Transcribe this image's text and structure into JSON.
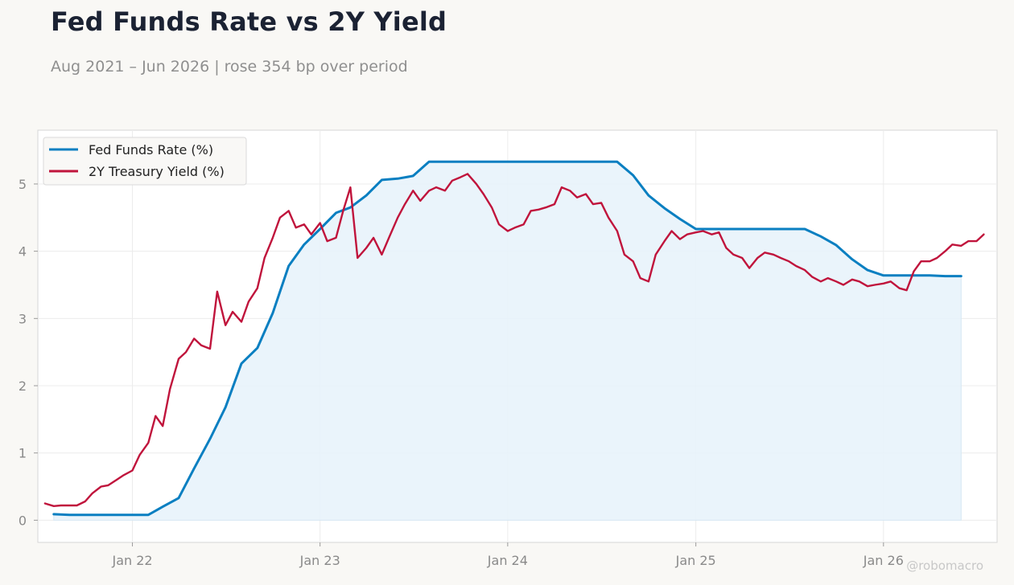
{
  "title": "Fed Funds Rate vs 2Y Yield",
  "subtitle": "Aug 2021 – Jun 2026 | rose 354 bp over period",
  "watermark": "@robomacro",
  "colors": {
    "background": "#f9f8f5",
    "plot_background": "#ffffff",
    "fed_funds": "#0a7fc1",
    "fed_funds_fill": "#e8f3fb",
    "treasury_2y": "#c0143c",
    "grid": "#ececec",
    "frame": "#d6d6d6"
  },
  "chart_data": {
    "type": "line",
    "title": "Fed Funds Rate vs 2Y Yield",
    "xlabel": "",
    "ylabel": "",
    "x_ticks": [
      "Jan 22",
      "Jan 23",
      "Jan 24",
      "Jan 25",
      "Jan 26"
    ],
    "y_ticks": [
      0,
      1,
      2,
      3,
      4,
      5
    ],
    "ylim": [
      -0.33,
      5.8
    ],
    "xlim": [
      "2021-07-01",
      "2026-08-10"
    ],
    "grid": true,
    "legend_position": "top-left",
    "series": [
      {
        "name": "Fed Funds Rate (%)",
        "color": "#0a7fc1",
        "fill_to_zero": true,
        "points": [
          [
            "2021-08-01",
            0.09
          ],
          [
            "2021-09-01",
            0.08
          ],
          [
            "2021-10-01",
            0.08
          ],
          [
            "2021-11-01",
            0.08
          ],
          [
            "2021-12-01",
            0.08
          ],
          [
            "2022-01-01",
            0.08
          ],
          [
            "2022-02-01",
            0.08
          ],
          [
            "2022-03-01",
            0.2
          ],
          [
            "2022-04-01",
            0.33
          ],
          [
            "2022-05-01",
            0.77
          ],
          [
            "2022-06-01",
            1.21
          ],
          [
            "2022-07-01",
            1.68
          ],
          [
            "2022-08-01",
            2.33
          ],
          [
            "2022-09-01",
            2.56
          ],
          [
            "2022-10-01",
            3.08
          ],
          [
            "2022-11-01",
            3.78
          ],
          [
            "2022-12-01",
            4.1
          ],
          [
            "2023-01-01",
            4.33
          ],
          [
            "2023-02-01",
            4.57
          ],
          [
            "2023-03-01",
            4.65
          ],
          [
            "2023-04-01",
            4.83
          ],
          [
            "2023-05-01",
            5.06
          ],
          [
            "2023-06-01",
            5.08
          ],
          [
            "2023-07-01",
            5.12
          ],
          [
            "2023-08-01",
            5.33
          ],
          [
            "2023-09-01",
            5.33
          ],
          [
            "2023-10-01",
            5.33
          ],
          [
            "2023-11-01",
            5.33
          ],
          [
            "2023-12-01",
            5.33
          ],
          [
            "2024-01-01",
            5.33
          ],
          [
            "2024-02-01",
            5.33
          ],
          [
            "2024-03-01",
            5.33
          ],
          [
            "2024-04-01",
            5.33
          ],
          [
            "2024-05-01",
            5.33
          ],
          [
            "2024-06-01",
            5.33
          ],
          [
            "2024-07-01",
            5.33
          ],
          [
            "2024-08-01",
            5.33
          ],
          [
            "2024-09-01",
            5.13
          ],
          [
            "2024-10-01",
            4.83
          ],
          [
            "2024-11-01",
            4.64
          ],
          [
            "2024-12-01",
            4.48
          ],
          [
            "2025-01-01",
            4.33
          ],
          [
            "2025-02-01",
            4.33
          ],
          [
            "2025-03-01",
            4.33
          ],
          [
            "2025-04-01",
            4.33
          ],
          [
            "2025-05-01",
            4.33
          ],
          [
            "2025-06-01",
            4.33
          ],
          [
            "2025-07-01",
            4.33
          ],
          [
            "2025-08-01",
            4.33
          ],
          [
            "2025-09-01",
            4.22
          ],
          [
            "2025-10-01",
            4.09
          ],
          [
            "2025-11-01",
            3.88
          ],
          [
            "2025-12-01",
            3.72
          ],
          [
            "2026-01-01",
            3.64
          ],
          [
            "2026-02-01",
            3.64
          ],
          [
            "2026-03-01",
            3.64
          ],
          [
            "2026-04-01",
            3.64
          ],
          [
            "2026-05-01",
            3.63
          ],
          [
            "2026-06-01",
            3.63
          ]
        ]
      },
      {
        "name": "2Y Treasury Yield (%)",
        "color": "#c0143c",
        "points": [
          [
            "2021-07-15",
            0.25
          ],
          [
            "2021-08-01",
            0.21
          ],
          [
            "2021-08-15",
            0.22
          ],
          [
            "2021-09-01",
            0.22
          ],
          [
            "2021-09-15",
            0.22
          ],
          [
            "2021-10-01",
            0.28
          ],
          [
            "2021-10-15",
            0.4
          ],
          [
            "2021-11-01",
            0.5
          ],
          [
            "2021-11-15",
            0.52
          ],
          [
            "2021-12-01",
            0.6
          ],
          [
            "2021-12-15",
            0.67
          ],
          [
            "2022-01-01",
            0.74
          ],
          [
            "2022-01-15",
            0.97
          ],
          [
            "2022-02-01",
            1.15
          ],
          [
            "2022-02-15",
            1.55
          ],
          [
            "2022-03-01",
            1.4
          ],
          [
            "2022-03-15",
            1.95
          ],
          [
            "2022-04-01",
            2.4
          ],
          [
            "2022-04-15",
            2.5
          ],
          [
            "2022-05-01",
            2.7
          ],
          [
            "2022-05-15",
            2.6
          ],
          [
            "2022-06-01",
            2.55
          ],
          [
            "2022-06-15",
            3.4
          ],
          [
            "2022-07-01",
            2.9
          ],
          [
            "2022-07-15",
            3.1
          ],
          [
            "2022-08-01",
            2.95
          ],
          [
            "2022-08-15",
            3.25
          ],
          [
            "2022-09-01",
            3.45
          ],
          [
            "2022-09-15",
            3.9
          ],
          [
            "2022-10-01",
            4.2
          ],
          [
            "2022-10-15",
            4.5
          ],
          [
            "2022-11-01",
            4.6
          ],
          [
            "2022-11-15",
            4.35
          ],
          [
            "2022-12-01",
            4.4
          ],
          [
            "2022-12-15",
            4.25
          ],
          [
            "2023-01-01",
            4.42
          ],
          [
            "2023-01-15",
            4.15
          ],
          [
            "2023-02-01",
            4.2
          ],
          [
            "2023-02-15",
            4.6
          ],
          [
            "2023-03-01",
            4.95
          ],
          [
            "2023-03-15",
            3.9
          ],
          [
            "2023-04-01",
            4.05
          ],
          [
            "2023-04-15",
            4.2
          ],
          [
            "2023-05-01",
            3.95
          ],
          [
            "2023-05-15",
            4.2
          ],
          [
            "2023-06-01",
            4.5
          ],
          [
            "2023-06-15",
            4.7
          ],
          [
            "2023-07-01",
            4.9
          ],
          [
            "2023-07-15",
            4.75
          ],
          [
            "2023-08-01",
            4.9
          ],
          [
            "2023-08-15",
            4.95
          ],
          [
            "2023-09-01",
            4.9
          ],
          [
            "2023-09-15",
            5.05
          ],
          [
            "2023-10-01",
            5.1
          ],
          [
            "2023-10-15",
            5.15
          ],
          [
            "2023-11-01",
            5.0
          ],
          [
            "2023-11-15",
            4.85
          ],
          [
            "2023-12-01",
            4.65
          ],
          [
            "2023-12-15",
            4.4
          ],
          [
            "2024-01-01",
            4.3
          ],
          [
            "2024-01-15",
            4.35
          ],
          [
            "2024-02-01",
            4.4
          ],
          [
            "2024-02-15",
            4.6
          ],
          [
            "2024-03-01",
            4.62
          ],
          [
            "2024-03-15",
            4.65
          ],
          [
            "2024-04-01",
            4.7
          ],
          [
            "2024-04-15",
            4.95
          ],
          [
            "2024-05-01",
            4.9
          ],
          [
            "2024-05-15",
            4.8
          ],
          [
            "2024-06-01",
            4.85
          ],
          [
            "2024-06-15",
            4.7
          ],
          [
            "2024-07-01",
            4.72
          ],
          [
            "2024-07-15",
            4.5
          ],
          [
            "2024-08-01",
            4.3
          ],
          [
            "2024-08-15",
            3.95
          ],
          [
            "2024-09-01",
            3.85
          ],
          [
            "2024-09-15",
            3.6
          ],
          [
            "2024-10-01",
            3.55
          ],
          [
            "2024-10-15",
            3.95
          ],
          [
            "2024-11-01",
            4.15
          ],
          [
            "2024-11-15",
            4.3
          ],
          [
            "2024-12-01",
            4.18
          ],
          [
            "2024-12-15",
            4.25
          ],
          [
            "2025-01-01",
            4.28
          ],
          [
            "2025-01-15",
            4.3
          ],
          [
            "2025-02-01",
            4.25
          ],
          [
            "2025-02-15",
            4.28
          ],
          [
            "2025-03-01",
            4.05
          ],
          [
            "2025-03-15",
            3.95
          ],
          [
            "2025-04-01",
            3.9
          ],
          [
            "2025-04-15",
            3.75
          ],
          [
            "2025-05-01",
            3.9
          ],
          [
            "2025-05-15",
            3.98
          ],
          [
            "2025-06-01",
            3.95
          ],
          [
            "2025-06-15",
            3.9
          ],
          [
            "2025-07-01",
            3.85
          ],
          [
            "2025-07-15",
            3.78
          ],
          [
            "2025-08-01",
            3.72
          ],
          [
            "2025-08-15",
            3.62
          ],
          [
            "2025-09-01",
            3.55
          ],
          [
            "2025-09-15",
            3.6
          ],
          [
            "2025-10-01",
            3.55
          ],
          [
            "2025-10-15",
            3.5
          ],
          [
            "2025-11-01",
            3.58
          ],
          [
            "2025-11-15",
            3.55
          ],
          [
            "2025-12-01",
            3.48
          ],
          [
            "2025-12-15",
            3.5
          ],
          [
            "2026-01-01",
            3.52
          ],
          [
            "2026-01-15",
            3.55
          ],
          [
            "2026-02-01",
            3.45
          ],
          [
            "2026-02-15",
            3.42
          ],
          [
            "2026-03-01",
            3.7
          ],
          [
            "2026-03-15",
            3.85
          ],
          [
            "2026-04-01",
            3.85
          ],
          [
            "2026-04-15",
            3.9
          ],
          [
            "2026-05-01",
            4.0
          ],
          [
            "2026-05-15",
            4.1
          ],
          [
            "2026-06-01",
            4.08
          ],
          [
            "2026-06-15",
            4.15
          ],
          [
            "2026-07-01",
            4.15
          ],
          [
            "2026-07-15",
            4.25
          ]
        ]
      }
    ]
  }
}
